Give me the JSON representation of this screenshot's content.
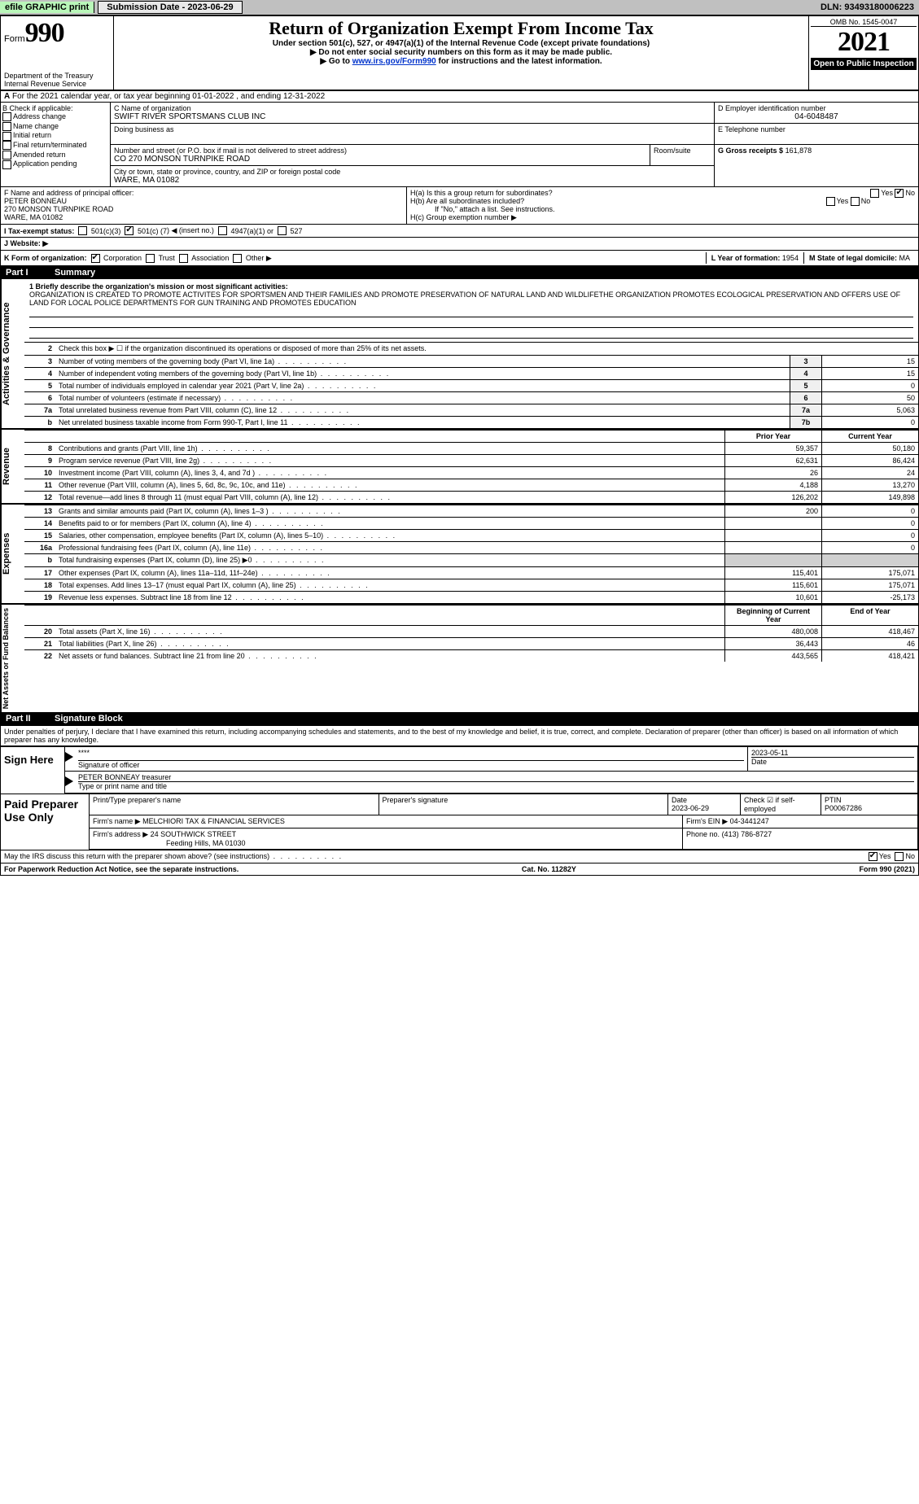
{
  "topbar": {
    "efile_label": "efile GRAPHIC print",
    "submission_label": "Submission Date - 2023-06-29",
    "dln_label": "DLN: 93493180006223"
  },
  "header": {
    "form_prefix": "Form",
    "form_number": "990",
    "title": "Return of Organization Exempt From Income Tax",
    "subtitle1": "Under section 501(c), 527, or 4947(a)(1) of the Internal Revenue Code (except private foundations)",
    "subtitle2": "▶ Do not enter social security numbers on this form as it may be made public.",
    "subtitle3_pre": "▶ Go to ",
    "subtitle3_link": "www.irs.gov/Form990",
    "subtitle3_post": " for instructions and the latest information.",
    "dept": "Department of the Treasury",
    "irs": "Internal Revenue Service",
    "omb": "OMB No. 1545-0047",
    "year": "2021",
    "open_public": "Open to Public Inspection"
  },
  "row_a": "For the 2021 calendar year, or tax year beginning 01-01-2022   , and ending 12-31-2022",
  "box_b": {
    "label": "B Check if applicable:",
    "addr": "Address change",
    "name": "Name change",
    "init": "Initial return",
    "final": "Final return/terminated",
    "amend": "Amended return",
    "app": "Application pending"
  },
  "box_c": {
    "name_label": "C Name of organization",
    "name_val": "SWIFT RIVER SPORTSMANS CLUB INC",
    "dba_label": "Doing business as",
    "addr_label": "Number and street (or P.O. box if mail is not delivered to street address)",
    "room_label": "Room/suite",
    "addr_val": "CO 270 MONSON TURNPIKE ROAD",
    "city_label": "City or town, state or province, country, and ZIP or foreign postal code",
    "city_val": "WARE, MA  01082"
  },
  "box_d": {
    "label": "D Employer identification number",
    "val": "04-6048487"
  },
  "box_e": {
    "label": "E Telephone number",
    "val": ""
  },
  "box_g": {
    "label": "G Gross receipts $",
    "val": "161,878"
  },
  "box_f": {
    "label": "F  Name and address of principal officer:",
    "line1": "PETER BONNEAU",
    "line2": "270 MONSON TURNPIKE ROAD",
    "line3": "WARE, MA  01082"
  },
  "box_h": {
    "ha_label": "H(a)  Is this a group return for subordinates?",
    "hb_label": "H(b)  Are all subordinates included?",
    "hb_note": "If \"No,\" attach a list. See instructions.",
    "hc_label": "H(c)  Group exemption number ▶",
    "yes": "Yes",
    "no": "No"
  },
  "row_i": {
    "label": "I  Tax-exempt status:",
    "opt1": "501(c)(3)",
    "opt2_pre": "501(c) (",
    "opt2_val": "7",
    "opt2_post": ") ◀ (insert no.)",
    "opt3": "4947(a)(1) or",
    "opt4": "527"
  },
  "row_j": {
    "label": "J  Website: ▶"
  },
  "row_k": {
    "label": "K Form of organization:",
    "corp": "Corporation",
    "trust": "Trust",
    "assoc": "Association",
    "other": "Other ▶"
  },
  "row_l": {
    "year_label": "L Year of formation:",
    "year_val": "1954",
    "state_label": "M State of legal domicile:",
    "state_val": "MA"
  },
  "part1": {
    "part_label": "Part I",
    "title": "Summary",
    "vtab_gov": "Activities & Governance",
    "vtab_rev": "Revenue",
    "vtab_exp": "Expenses",
    "vtab_net": "Net Assets or Fund Balances",
    "line1_label": "1  Briefly describe the organization's mission or most significant activities:",
    "mission": "ORGANIZATION IS CREATED TO PROMOTE ACTIVITES FOR SPORTSMEN AND THEIR FAMILIES AND PROMOTE PRESERVATION OF NATURAL LAND AND WILDLIFETHE ORGANIZATION PROMOTES ECOLOGICAL PRESERVATION AND OFFERS USE OF LAND FOR LOCAL POLICE DEPARTMENTS FOR GUN TRAINING AND PROMOTES EDUCATION",
    "line2": "Check this box ▶ ☐ if the organization discontinued its operations or disposed of more than 25% of its net assets.",
    "rows_single": [
      {
        "n": "3",
        "label": "Number of voting members of the governing body (Part VI, line 1a)",
        "box": "3",
        "val": "15"
      },
      {
        "n": "4",
        "label": "Number of independent voting members of the governing body (Part VI, line 1b)",
        "box": "4",
        "val": "15"
      },
      {
        "n": "5",
        "label": "Total number of individuals employed in calendar year 2021 (Part V, line 2a)",
        "box": "5",
        "val": "0"
      },
      {
        "n": "6",
        "label": "Total number of volunteers (estimate if necessary)",
        "box": "6",
        "val": "50"
      },
      {
        "n": "7a",
        "label": "Total unrelated business revenue from Part VIII, column (C), line 12",
        "box": "7a",
        "val": "5,063"
      },
      {
        "n": "b",
        "label": "Net unrelated business taxable income from Form 990-T, Part I, line 11",
        "box": "7b",
        "val": "0"
      }
    ],
    "col_prior": "Prior Year",
    "col_current": "Current Year",
    "rows_rev": [
      {
        "n": "8",
        "label": "Contributions and grants (Part VIII, line 1h)",
        "prior": "59,357",
        "cur": "50,180"
      },
      {
        "n": "9",
        "label": "Program service revenue (Part VIII, line 2g)",
        "prior": "62,631",
        "cur": "86,424"
      },
      {
        "n": "10",
        "label": "Investment income (Part VIII, column (A), lines 3, 4, and 7d )",
        "prior": "26",
        "cur": "24"
      },
      {
        "n": "11",
        "label": "Other revenue (Part VIII, column (A), lines 5, 6d, 8c, 9c, 10c, and 11e)",
        "prior": "4,188",
        "cur": "13,270"
      },
      {
        "n": "12",
        "label": "Total revenue—add lines 8 through 11 (must equal Part VIII, column (A), line 12)",
        "prior": "126,202",
        "cur": "149,898"
      }
    ],
    "rows_exp": [
      {
        "n": "13",
        "label": "Grants and similar amounts paid (Part IX, column (A), lines 1–3 )",
        "prior": "200",
        "cur": "0"
      },
      {
        "n": "14",
        "label": "Benefits paid to or for members (Part IX, column (A), line 4)",
        "prior": "",
        "cur": "0"
      },
      {
        "n": "15",
        "label": "Salaries, other compensation, employee benefits (Part IX, column (A), lines 5–10)",
        "prior": "",
        "cur": "0"
      },
      {
        "n": "16a",
        "label": "Professional fundraising fees (Part IX, column (A), line 11e)",
        "prior": "",
        "cur": "0"
      },
      {
        "n": "b",
        "label": "Total fundraising expenses (Part IX, column (D), line 25) ▶0",
        "prior": "SHADE",
        "cur": "SHADE"
      },
      {
        "n": "17",
        "label": "Other expenses (Part IX, column (A), lines 11a–11d, 11f–24e)",
        "prior": "115,401",
        "cur": "175,071"
      },
      {
        "n": "18",
        "label": "Total expenses. Add lines 13–17 (must equal Part IX, column (A), line 25)",
        "prior": "115,601",
        "cur": "175,071"
      },
      {
        "n": "19",
        "label": "Revenue less expenses. Subtract line 18 from line 12",
        "prior": "10,601",
        "cur": "-25,173"
      }
    ],
    "col_begin": "Beginning of Current Year",
    "col_end": "End of Year",
    "rows_net": [
      {
        "n": "20",
        "label": "Total assets (Part X, line 16)",
        "prior": "480,008",
        "cur": "418,467"
      },
      {
        "n": "21",
        "label": "Total liabilities (Part X, line 26)",
        "prior": "36,443",
        "cur": "46"
      },
      {
        "n": "22",
        "label": "Net assets or fund balances. Subtract line 21 from line 20",
        "prior": "443,565",
        "cur": "418,421"
      }
    ]
  },
  "part2": {
    "part_label": "Part II",
    "title": "Signature Block",
    "penalties": "Under penalties of perjury, I declare that I have examined this return, including accompanying schedules and statements, and to the best of my knowledge and belief, it is true, correct, and complete. Declaration of preparer (other than officer) is based on all information of which preparer has any knowledge."
  },
  "sign": {
    "label": "Sign Here",
    "sig_officer": "Signature of officer",
    "date": "Date",
    "date_val": "2023-05-11",
    "name": "PETER BONNEAY  treasurer",
    "type_label": "Type or print name and title"
  },
  "paid": {
    "label": "Paid Preparer Use Only",
    "prep_name_label": "Print/Type preparer's name",
    "prep_sig_label": "Preparer's signature",
    "date_label": "Date",
    "date_val": "2023-06-29",
    "check_label": "Check ☑ if self-employed",
    "ptin_label": "PTIN",
    "ptin_val": "P00067286",
    "firm_name_label": "Firm's name    ▶",
    "firm_name_val": "MELCHIORI TAX & FINANCIAL SERVICES",
    "firm_ein_label": "Firm's EIN ▶",
    "firm_ein_val": "04-3441247",
    "firm_addr_label": "Firm's address ▶",
    "firm_addr_val1": "24 SOUTHWICK STREET",
    "firm_addr_val2": "Feeding Hills, MA  01030",
    "phone_label": "Phone no.",
    "phone_val": "(413) 786-8727"
  },
  "discuss": {
    "label": "May the IRS discuss this return with the preparer shown above? (see instructions)",
    "yes": "Yes",
    "no": "No"
  },
  "footer": {
    "left": "For Paperwork Reduction Act Notice, see the separate instructions.",
    "mid": "Cat. No. 11282Y",
    "right": "Form 990 (2021)"
  },
  "colors": {
    "efile_bg": "#b9f7b9",
    "topbar_bg": "#c0c0c0",
    "link": "#0033cc"
  }
}
